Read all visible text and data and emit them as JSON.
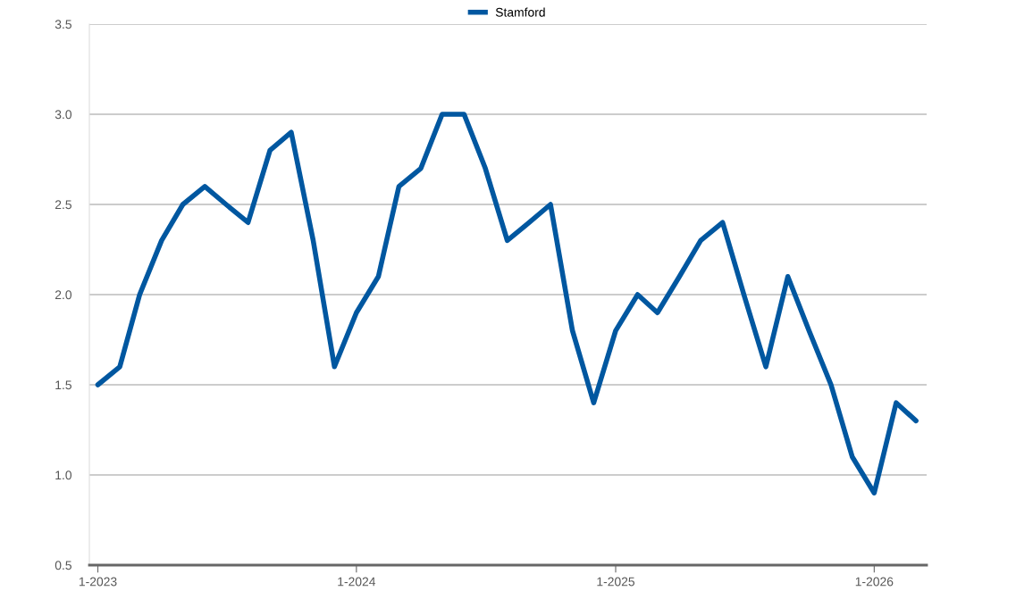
{
  "chart_data": {
    "type": "line",
    "x": [
      "2023-01",
      "2023-02",
      "2023-03",
      "2023-04",
      "2023-05",
      "2023-06",
      "2023-07",
      "2023-08",
      "2023-09",
      "2023-10",
      "2023-11",
      "2023-12",
      "2024-01",
      "2024-02",
      "2024-03",
      "2024-04",
      "2024-05",
      "2024-06",
      "2024-07",
      "2024-08",
      "2024-09",
      "2024-10",
      "2024-11",
      "2024-12",
      "2025-01",
      "2025-02",
      "2025-03",
      "2025-04",
      "2025-05",
      "2025-06",
      "2025-07",
      "2025-08",
      "2025-09",
      "2025-10",
      "2025-11",
      "2025-12",
      "2026-01",
      "2026-02",
      "2026-03"
    ],
    "series": [
      {
        "name": "Stamford",
        "color": "#0057a0",
        "values": [
          1.5,
          1.6,
          2.0,
          2.3,
          2.5,
          2.6,
          2.5,
          2.4,
          2.8,
          2.9,
          2.3,
          1.6,
          1.9,
          2.1,
          2.6,
          2.7,
          3.0,
          3.0,
          2.7,
          2.3,
          2.4,
          2.5,
          1.8,
          1.4,
          1.8,
          2.0,
          1.9,
          2.1,
          2.3,
          2.4,
          2.0,
          1.6,
          2.1,
          1.8,
          1.5,
          1.1,
          0.9,
          1.4,
          1.3
        ]
      }
    ],
    "xlim": [
      "2022-12-20",
      "2026-03-16"
    ],
    "xticks": [
      {
        "value": "2023-01",
        "label": "1-2023"
      },
      {
        "value": "2024-01",
        "label": "1-2024"
      },
      {
        "value": "2025-01",
        "label": "1-2025"
      },
      {
        "value": "2026-01",
        "label": "1-2026"
      }
    ],
    "ylim": [
      0.5,
      3.5
    ],
    "yticks": [
      0.5,
      {
        "value": 1.0,
        "label": "1.0"
      },
      1.5,
      {
        "value": 2.0,
        "label": "2.0"
      },
      2.5,
      {
        "value": 3.0,
        "label": "3.0"
      },
      3.5
    ],
    "grid": "y",
    "legend": "top",
    "marker": "none",
    "line_style": "solid"
  }
}
